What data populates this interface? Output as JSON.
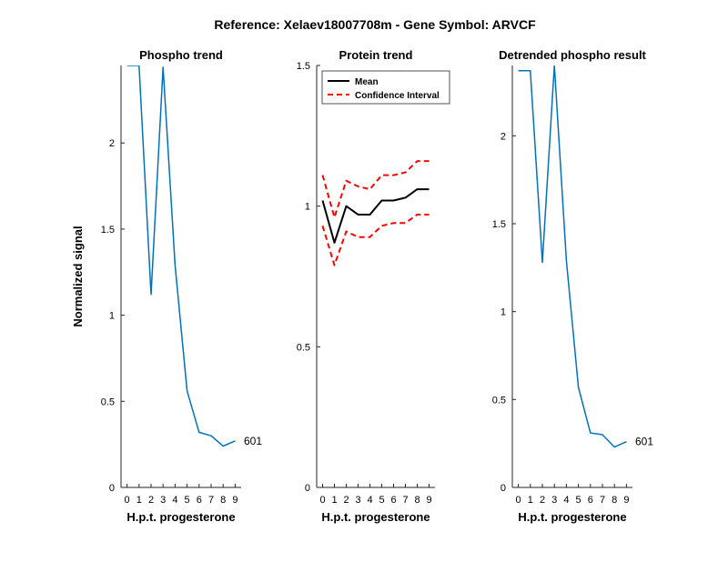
{
  "suptitle": "Reference:  Xelaev18007708m - Gene Symbol:  ARVCF",
  "colors": {
    "series": "#0072BD",
    "mean": "#000000",
    "ci": "#FF0000",
    "axis": "#262626"
  },
  "chart_data": [
    {
      "type": "line",
      "title": "Phospho trend",
      "xlabel": "H.p.t. progesterone",
      "ylabel": "Normalized signal",
      "xlim": [
        -0.5,
        9.5
      ],
      "ylim": [
        0,
        2.45
      ],
      "xticks": [
        "0",
        "1",
        "2",
        "3",
        "4",
        "5",
        "6",
        "7",
        "8",
        "9"
      ],
      "yticks": [
        "0",
        "0.5",
        "1",
        "1.5",
        "2"
      ],
      "series": [
        {
          "name": "601",
          "x": [
            0,
            1,
            2,
            3,
            4,
            5,
            6,
            7,
            8,
            9
          ],
          "values": [
            2.45,
            2.45,
            1.12,
            2.44,
            1.29,
            0.56,
            0.32,
            0.3,
            0.24,
            0.27
          ]
        }
      ],
      "end_label": "601"
    },
    {
      "type": "line",
      "title": "Protein trend",
      "xlabel": "H.p.t. progesterone",
      "ylabel": "",
      "xlim": [
        -0.5,
        9.5
      ],
      "ylim": [
        0,
        1.5
      ],
      "xticks": [
        "0",
        "1",
        "2",
        "3",
        "4",
        "5",
        "6",
        "7",
        "8",
        "9"
      ],
      "yticks": [
        "0",
        "0.5",
        "1",
        "1.5"
      ],
      "legend": {
        "position": "top-left",
        "entries": [
          "Mean",
          "Confidence Interval"
        ]
      },
      "series": [
        {
          "name": "Mean",
          "x": [
            0,
            1,
            2,
            3,
            4,
            5,
            6,
            7,
            8,
            9
          ],
          "values": [
            1.02,
            0.87,
            1.0,
            0.97,
            0.97,
            1.02,
            1.02,
            1.03,
            1.06,
            1.06
          ]
        },
        {
          "name": "Confidence Interval (upper)",
          "x": [
            0,
            1,
            2,
            3,
            4,
            5,
            6,
            7,
            8,
            9
          ],
          "values": [
            1.11,
            0.96,
            1.09,
            1.07,
            1.06,
            1.11,
            1.11,
            1.12,
            1.16,
            1.16
          ]
        },
        {
          "name": "Confidence Interval (lower)",
          "x": [
            0,
            1,
            2,
            3,
            4,
            5,
            6,
            7,
            8,
            9
          ],
          "values": [
            0.93,
            0.79,
            0.91,
            0.89,
            0.89,
            0.93,
            0.94,
            0.94,
            0.97,
            0.97
          ]
        }
      ]
    },
    {
      "type": "line",
      "title": "Detrended phospho result",
      "xlabel": "H.p.t. progesterone",
      "ylabel": "",
      "xlim": [
        -0.5,
        9.5
      ],
      "ylim": [
        0,
        2.4
      ],
      "xticks": [
        "0",
        "1",
        "2",
        "3",
        "4",
        "5",
        "6",
        "7",
        "8",
        "9"
      ],
      "yticks": [
        "0",
        "0.5",
        "1",
        "1.5",
        "2"
      ],
      "series": [
        {
          "name": "601",
          "x": [
            0,
            1,
            2,
            3,
            4,
            5,
            6,
            7,
            8,
            9
          ],
          "values": [
            2.37,
            2.37,
            1.28,
            2.4,
            1.29,
            0.57,
            0.31,
            0.3,
            0.23,
            0.26
          ]
        }
      ],
      "end_label": "601"
    }
  ]
}
